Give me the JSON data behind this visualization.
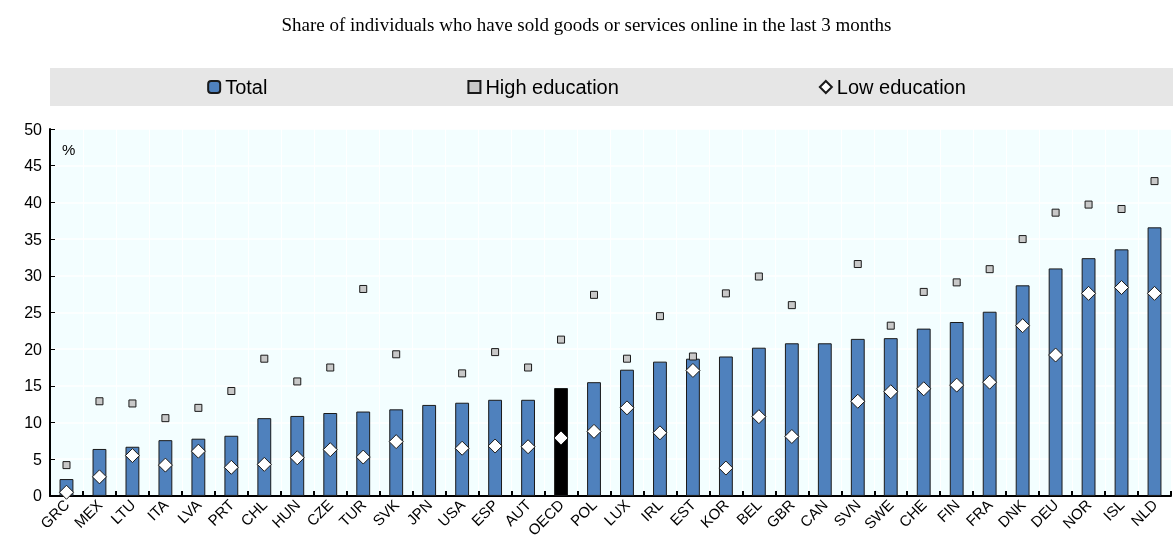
{
  "chart_data": {
    "type": "bar",
    "title": "Share of individuals who have sold goods or services online in the last 3 months",
    "ylabel": "%",
    "categories": [
      "GRC",
      "MEX",
      "LTU",
      "ITA",
      "LVA",
      "PRT",
      "CHL",
      "HUN",
      "CZE",
      "TUR",
      "SVK",
      "JPN",
      "USA",
      "ESP",
      "AUT",
      "OECD",
      "POL",
      "LUX",
      "IRL",
      "EST",
      "KOR",
      "BEL",
      "GBR",
      "CAN",
      "SVN",
      "SWE",
      "CHE",
      "FIN",
      "FRA",
      "DNK",
      "DEU",
      "NOR",
      "ISL",
      "NLD"
    ],
    "series": [
      {
        "name": "Total",
        "color": "#4f81bd",
        "colors": [
          "#4f81bd",
          "#4f81bd",
          "#4f81bd",
          "#4f81bd",
          "#4f81bd",
          "#4f81bd",
          "#4f81bd",
          "#4f81bd",
          "#4f81bd",
          "#4f81bd",
          "#4f81bd",
          "#4f81bd",
          "#4f81bd",
          "#4f81bd",
          "#4f81bd",
          "#000000",
          "#4f81bd",
          "#4f81bd",
          "#4f81bd",
          "#4f81bd",
          "#4f81bd",
          "#4f81bd",
          "#4f81bd",
          "#4f81bd",
          "#4f81bd",
          "#4f81bd",
          "#4f81bd",
          "#4f81bd",
          "#4f81bd",
          "#4f81bd",
          "#4f81bd",
          "#4f81bd",
          "#4f81bd",
          "#4f81bd"
        ],
        "values": [
          2.3,
          6.4,
          6.7,
          7.6,
          7.8,
          8.2,
          10.6,
          10.9,
          11.3,
          11.5,
          11.8,
          12.4,
          12.7,
          13.1,
          13.1,
          14.7,
          15.5,
          17.2,
          18.3,
          18.7,
          19.0,
          20.2,
          20.8,
          20.8,
          21.4,
          21.5,
          22.8,
          23.7,
          25.1,
          28.7,
          31.0,
          32.4,
          33.6,
          36.6
        ]
      },
      {
        "name": "High education",
        "type": "scatter",
        "marker": "square",
        "color": "#c8c8c8",
        "values": [
          4.2,
          12.9,
          12.6,
          10.6,
          12.0,
          14.3,
          18.7,
          15.6,
          17.5,
          28.2,
          19.3,
          null,
          16.7,
          19.6,
          17.5,
          21.3,
          27.4,
          18.7,
          24.5,
          19.0,
          27.6,
          29.9,
          26.0,
          null,
          31.6,
          23.2,
          27.8,
          29.1,
          30.9,
          35.0,
          38.6,
          39.7,
          39.1,
          42.9
        ]
      },
      {
        "name": "Low education",
        "type": "scatter",
        "marker": "diamond",
        "color": "#ffffff",
        "values": [
          0.5,
          2.6,
          5.5,
          4.2,
          6.1,
          3.9,
          4.3,
          5.2,
          6.3,
          5.3,
          7.4,
          null,
          6.5,
          6.8,
          6.7,
          7.9,
          8.8,
          12.0,
          8.6,
          17.1,
          3.8,
          10.8,
          8.1,
          null,
          12.9,
          14.2,
          14.6,
          15.1,
          15.5,
          23.2,
          19.2,
          27.6,
          28.4,
          27.6
        ]
      }
    ],
    "ylim": [
      0,
      50
    ],
    "yticks": [
      0,
      5,
      10,
      15,
      20,
      25,
      30,
      35,
      40,
      45,
      50
    ],
    "grid": true,
    "legend": "top"
  }
}
